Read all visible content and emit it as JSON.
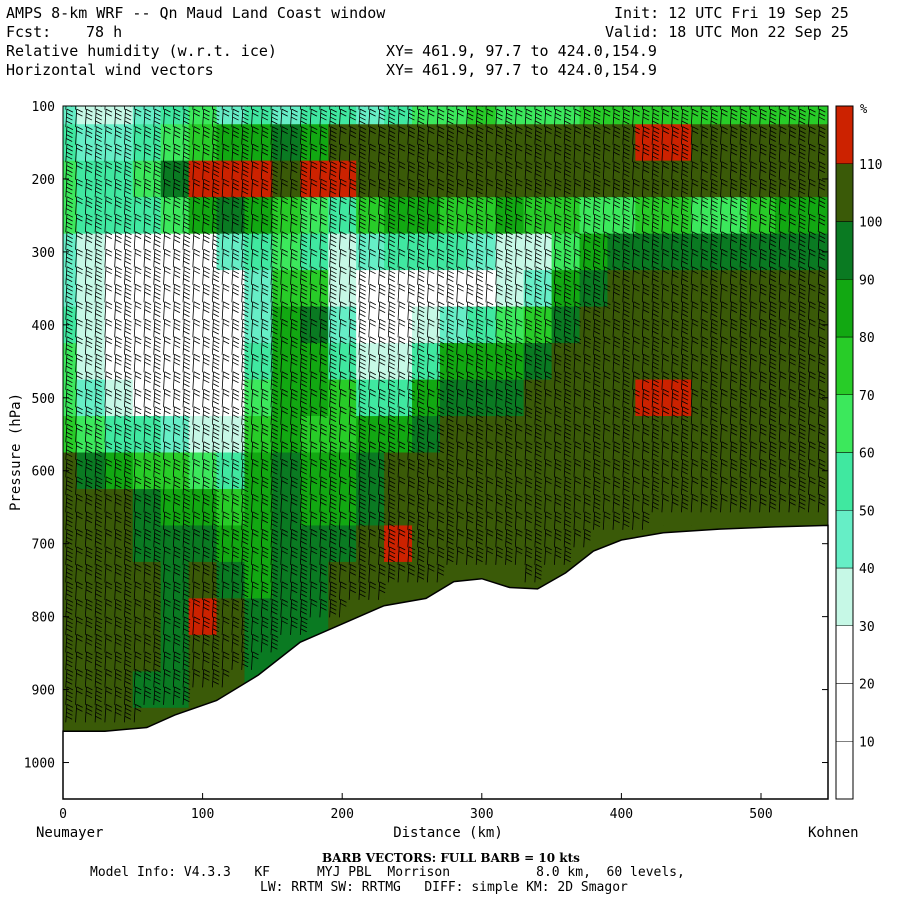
{
  "header": {
    "title": "AMPS 8-km WRF -- Qn Maud Land Coast window",
    "init": "Init: 12 UTC Fri 19 Sep 25",
    "fcst_label": "Fcst:",
    "fcst_value": "78 h",
    "valid": "Valid: 18 UTC Mon 22 Sep 25",
    "field1": "Relative humidity (w.r.t. ice)",
    "field2": "Horizontal wind vectors",
    "xy1": "XY= 461.9, 97.7 to 424.0,154.9",
    "xy2": "XY= 461.9, 97.7 to 424.0,154.9"
  },
  "footer": {
    "barb_note": "BARB VECTORS:  FULL BARB = 10 kts",
    "model_info": "Model Info: V4.3.3   KF      MYJ PBL  Morrison           8.0 km,  60 levels,",
    "model_info2": "LW: RRTM SW: RRTMG   DIFF: simple KM: 2D Smagor"
  },
  "chart_data": {
    "type": "heatmap",
    "title": "Relative humidity (w.r.t. ice)",
    "xlabel": "Distance (km)",
    "ylabel": "Pressure (hPa)",
    "x_left_label": "Neumayer",
    "x_right_label": "Kohnen",
    "xlim": [
      0,
      548
    ],
    "ylim": [
      1050,
      100
    ],
    "x_ticks": [
      0,
      100,
      200,
      300,
      400,
      500
    ],
    "y_ticks": [
      100,
      200,
      300,
      400,
      500,
      600,
      700,
      800,
      900,
      1000
    ],
    "colorbar": {
      "unit": "%",
      "levels": [
        10,
        20,
        30,
        40,
        50,
        60,
        70,
        80,
        90,
        100,
        110
      ],
      "colors": [
        "#ffffff",
        "#ffffff",
        "#ffffff",
        "#c6f8e6",
        "#66eec6",
        "#40e8a0",
        "#3ce85c",
        "#28cc28",
        "#12a812",
        "#0a7a22",
        "#3a5a08",
        "#cc2200"
      ]
    },
    "terrain": {
      "x_km": [
        0,
        30,
        60,
        80,
        110,
        140,
        170,
        200,
        230,
        260,
        280,
        300,
        320,
        340,
        360,
        380,
        400,
        430,
        470,
        510,
        548
      ],
      "p_hpa": [
        957,
        957,
        952,
        935,
        915,
        880,
        835,
        810,
        785,
        775,
        752,
        748,
        760,
        762,
        740,
        710,
        695,
        685,
        680,
        677,
        675
      ]
    },
    "rh_fill": {
      "levels_hpa": [
        100,
        150,
        200,
        250,
        300,
        350,
        400,
        450,
        500,
        550,
        600,
        650,
        700,
        750,
        800,
        850,
        900,
        950
      ],
      "x_km": [
        0,
        20,
        40,
        60,
        80,
        100,
        120,
        140,
        160,
        180,
        200,
        220,
        240,
        260,
        280,
        300,
        320,
        340,
        360,
        380,
        400,
        420,
        440,
        460,
        480,
        500,
        520,
        548
      ],
      "rows": [
        [
          40,
          30,
          30,
          40,
          50,
          60,
          40,
          50,
          40,
          50,
          50,
          40,
          50,
          60,
          60,
          70,
          60,
          60,
          60,
          70,
          70,
          70,
          70,
          70,
          70,
          70,
          70,
          70
        ],
        [
          50,
          40,
          40,
          50,
          60,
          70,
          80,
          80,
          90,
          80,
          100,
          100,
          100,
          100,
          100,
          100,
          100,
          100,
          100,
          100,
          100,
          110,
          110,
          100,
          100,
          100,
          100,
          100
        ],
        [
          60,
          50,
          50,
          60,
          90,
          110,
          110,
          110,
          100,
          110,
          110,
          100,
          100,
          100,
          100,
          100,
          100,
          100,
          100,
          100,
          100,
          100,
          100,
          100,
          100,
          100,
          100,
          100
        ],
        [
          60,
          50,
          50,
          50,
          60,
          80,
          90,
          80,
          70,
          60,
          50,
          70,
          80,
          80,
          70,
          70,
          80,
          70,
          70,
          60,
          60,
          70,
          70,
          60,
          60,
          70,
          80,
          80
        ],
        [
          40,
          30,
          20,
          20,
          20,
          20,
          40,
          50,
          60,
          50,
          30,
          40,
          50,
          50,
          50,
          40,
          30,
          30,
          60,
          80,
          90,
          90,
          90,
          90,
          90,
          90,
          90,
          90
        ],
        [
          40,
          30,
          20,
          20,
          20,
          20,
          20,
          40,
          70,
          70,
          30,
          20,
          20,
          20,
          20,
          20,
          30,
          40,
          80,
          90,
          100,
          100,
          100,
          100,
          100,
          100,
          100,
          100
        ],
        [
          50,
          30,
          20,
          20,
          20,
          20,
          20,
          40,
          80,
          90,
          40,
          20,
          20,
          30,
          40,
          50,
          60,
          70,
          90,
          100,
          100,
          100,
          100,
          100,
          100,
          100,
          100,
          100
        ],
        [
          60,
          30,
          20,
          20,
          20,
          20,
          20,
          50,
          80,
          80,
          50,
          30,
          30,
          50,
          80,
          80,
          80,
          90,
          100,
          100,
          100,
          100,
          100,
          100,
          100,
          100,
          100,
          100
        ],
        [
          60,
          40,
          30,
          20,
          20,
          20,
          20,
          60,
          80,
          80,
          70,
          50,
          50,
          80,
          90,
          90,
          90,
          100,
          100,
          100,
          100,
          110,
          110,
          100,
          100,
          100,
          100,
          100
        ],
        [
          70,
          60,
          50,
          50,
          40,
          30,
          30,
          70,
          80,
          70,
          70,
          80,
          80,
          90,
          100,
          100,
          100,
          100,
          100,
          100,
          100,
          100,
          100,
          100,
          100,
          100,
          100,
          100
        ],
        [
          100,
          90,
          80,
          70,
          70,
          60,
          50,
          80,
          90,
          80,
          80,
          90,
          100,
          100,
          100,
          100,
          100,
          100,
          100,
          100,
          100,
          100,
          100,
          100,
          100,
          100,
          100,
          100
        ],
        [
          100,
          100,
          100,
          90,
          80,
          80,
          70,
          80,
          90,
          80,
          80,
          90,
          100,
          100,
          100,
          100,
          100,
          100,
          100,
          100,
          100,
          100,
          100,
          100,
          100,
          100,
          100,
          100
        ],
        [
          100,
          100,
          100,
          90,
          90,
          90,
          80,
          80,
          90,
          90,
          90,
          100,
          110,
          100,
          100,
          100,
          100,
          100,
          100,
          100,
          100,
          100,
          100,
          100,
          100,
          100,
          100,
          100
        ],
        [
          100,
          100,
          100,
          100,
          90,
          100,
          90,
          80,
          90,
          90,
          100,
          100,
          100,
          100,
          100,
          100,
          100,
          100,
          100,
          100,
          100,
          100,
          100,
          100,
          100,
          100,
          100,
          100
        ],
        [
          100,
          100,
          100,
          100,
          90,
          110,
          100,
          90,
          90,
          90,
          100,
          100,
          100,
          100,
          100,
          100,
          100,
          100,
          100,
          100,
          100,
          100,
          100,
          100,
          100,
          100,
          100,
          100
        ],
        [
          100,
          100,
          100,
          100,
          90,
          100,
          100,
          90,
          90,
          90,
          100,
          100,
          100,
          100,
          100,
          100,
          100,
          100,
          100,
          100,
          100,
          100,
          100,
          100,
          100,
          100,
          100,
          100
        ],
        [
          100,
          100,
          100,
          90,
          90,
          100,
          100,
          90,
          90,
          90,
          100,
          100,
          100,
          100,
          100,
          100,
          100,
          100,
          100,
          100,
          100,
          100,
          100,
          100,
          100,
          100,
          100,
          100
        ],
        [
          100,
          100,
          100,
          100,
          100,
          100,
          100,
          100,
          100,
          100,
          100,
          100,
          100,
          100,
          100,
          100,
          100,
          100,
          100,
          100,
          100,
          100,
          100,
          100,
          100,
          100,
          100,
          100
        ]
      ]
    }
  }
}
